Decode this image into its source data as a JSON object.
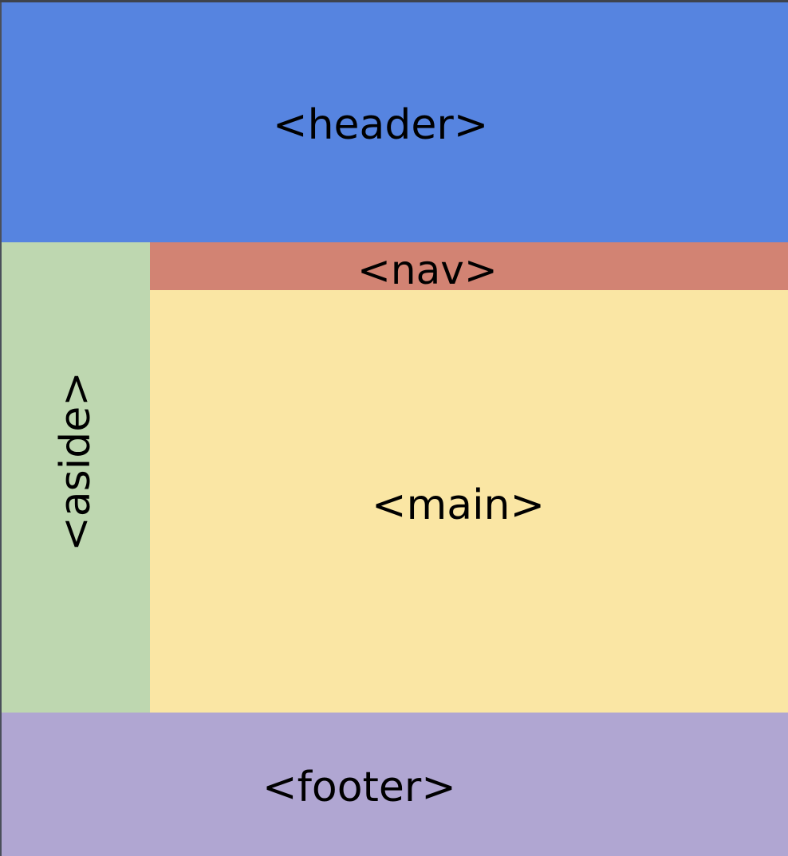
{
  "diagram": {
    "header": {
      "label": "<header>",
      "color": "#5684E0"
    },
    "nav": {
      "label": "<nav>",
      "color": "#D28373"
    },
    "aside": {
      "label": "<aside>",
      "color": "#BED7B0"
    },
    "main": {
      "label": "<main>",
      "color": "#FAE6A4"
    },
    "footer": {
      "label": "<footer>",
      "color": "#B0A6D2"
    }
  }
}
